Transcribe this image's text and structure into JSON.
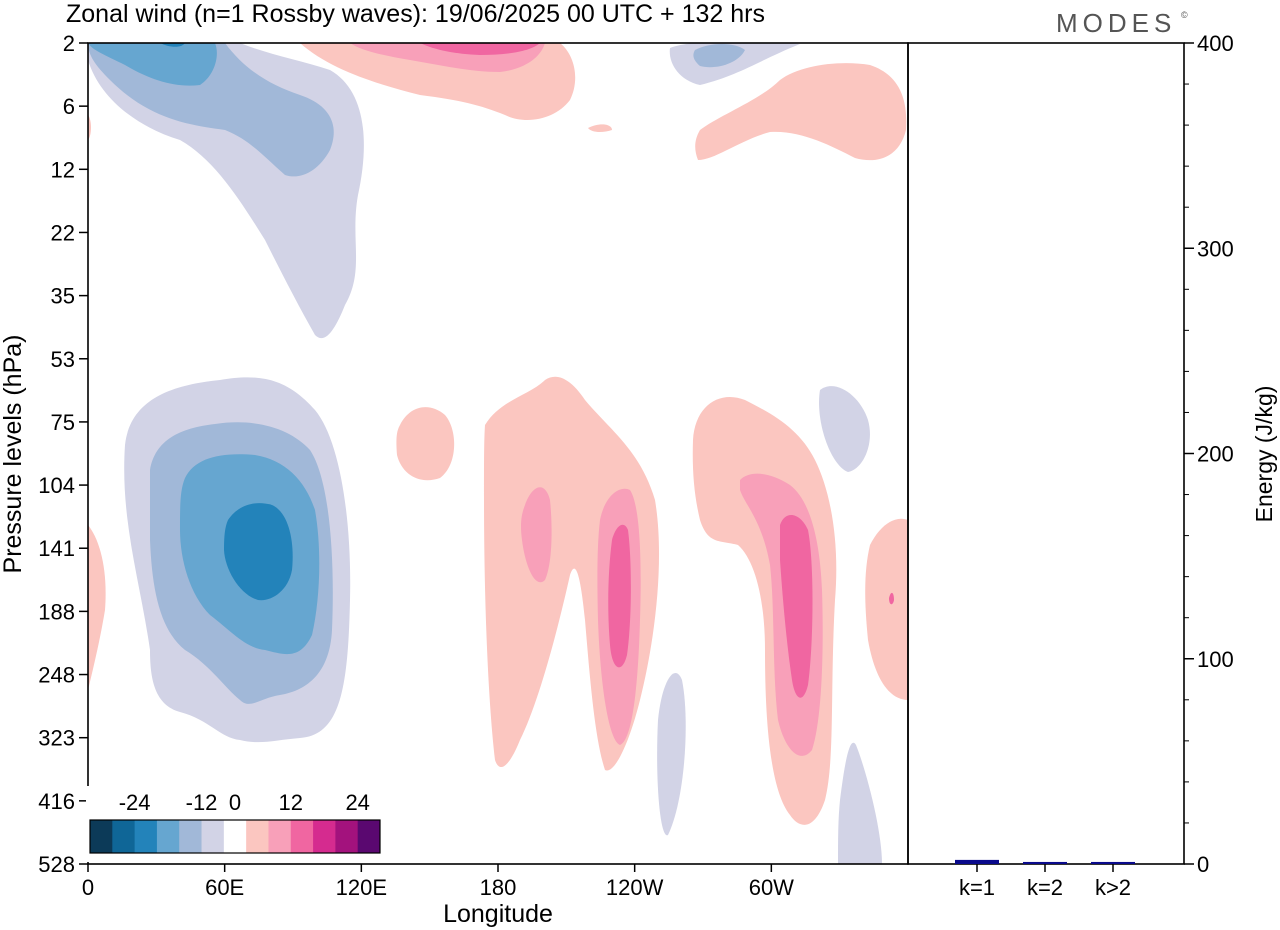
{
  "title": "Zonal wind (n=1 Rossby waves):  19/06/2025  00 UTC  + 132 hrs",
  "brand": "MODES",
  "brand_mark": "©",
  "chart_data": [
    {
      "type": "heatmap",
      "field": "zonal wind anomaly (contour-filled)",
      "xlabel": "Longitude",
      "ylabel": "Pressure levels (hPa)",
      "x_ticks": [
        "0",
        "60E",
        "120E",
        "180",
        "120W",
        "60W"
      ],
      "x_tick_degrees": [
        0,
        60,
        120,
        180,
        240,
        300
      ],
      "xlim": [
        0,
        360
      ],
      "y_ticks": [
        "2",
        "6",
        "12",
        "22",
        "35",
        "53",
        "75",
        "104",
        "141",
        "188",
        "248",
        "323",
        "416",
        "528"
      ],
      "colorbar": {
        "tick_labels": [
          "-24",
          "-12",
          "0",
          "12",
          "24"
        ],
        "levels": [
          -28,
          -24,
          -20,
          -16,
          -12,
          -8,
          -4,
          4,
          8,
          12,
          16,
          20,
          24,
          28
        ],
        "colors": [
          "#0c3a58",
          "#0f6697",
          "#2383ba",
          "#66a6d0",
          "#a1b8d8",
          "#d2d3e6",
          "#ffffff",
          "#fbc6c0",
          "#f8a0b9",
          "#f066a1",
          "#d52b8f",
          "#a3127d",
          "#5a0870"
        ]
      },
      "features": [
        {
          "sign": "negative",
          "peak": -20,
          "lon_range": [
            20,
            90
          ],
          "levels_hPa": "75-323",
          "center_lon": 60,
          "center_hPa": 141
        },
        {
          "sign": "negative",
          "peak": -12,
          "lon_range": [
            0,
            120
          ],
          "levels_hPa": "2-35"
        },
        {
          "sign": "positive",
          "peak": 12,
          "lon_range": [
            120,
            195
          ],
          "levels_hPa": "2"
        },
        {
          "sign": "positive",
          "peak": 12,
          "lon_range": [
            230,
            245
          ],
          "levels_hPa": "104-323",
          "center_lon": 235
        },
        {
          "sign": "positive",
          "peak": 12,
          "lon_range": [
            295,
            310
          ],
          "levels_hPa": "104-323",
          "center_lon": 300
        },
        {
          "sign": "positive",
          "peak": 8,
          "lon_range": [
            190,
            205
          ],
          "levels_hPa": "104-188"
        },
        {
          "sign": "positive",
          "peak": 4,
          "lon_range": [
            270,
            360
          ],
          "levels_hPa": "2-12"
        }
      ]
    },
    {
      "type": "bar",
      "categories": [
        "k=1",
        "k=2",
        "k>2"
      ],
      "values": [
        2,
        1,
        1
      ],
      "ylabel": "Energy (J/kg)",
      "ylim": [
        0,
        400
      ],
      "y_ticks": [
        "0",
        "100",
        "200",
        "300",
        "400"
      ],
      "bar_color": "#0a0a8c"
    }
  ]
}
